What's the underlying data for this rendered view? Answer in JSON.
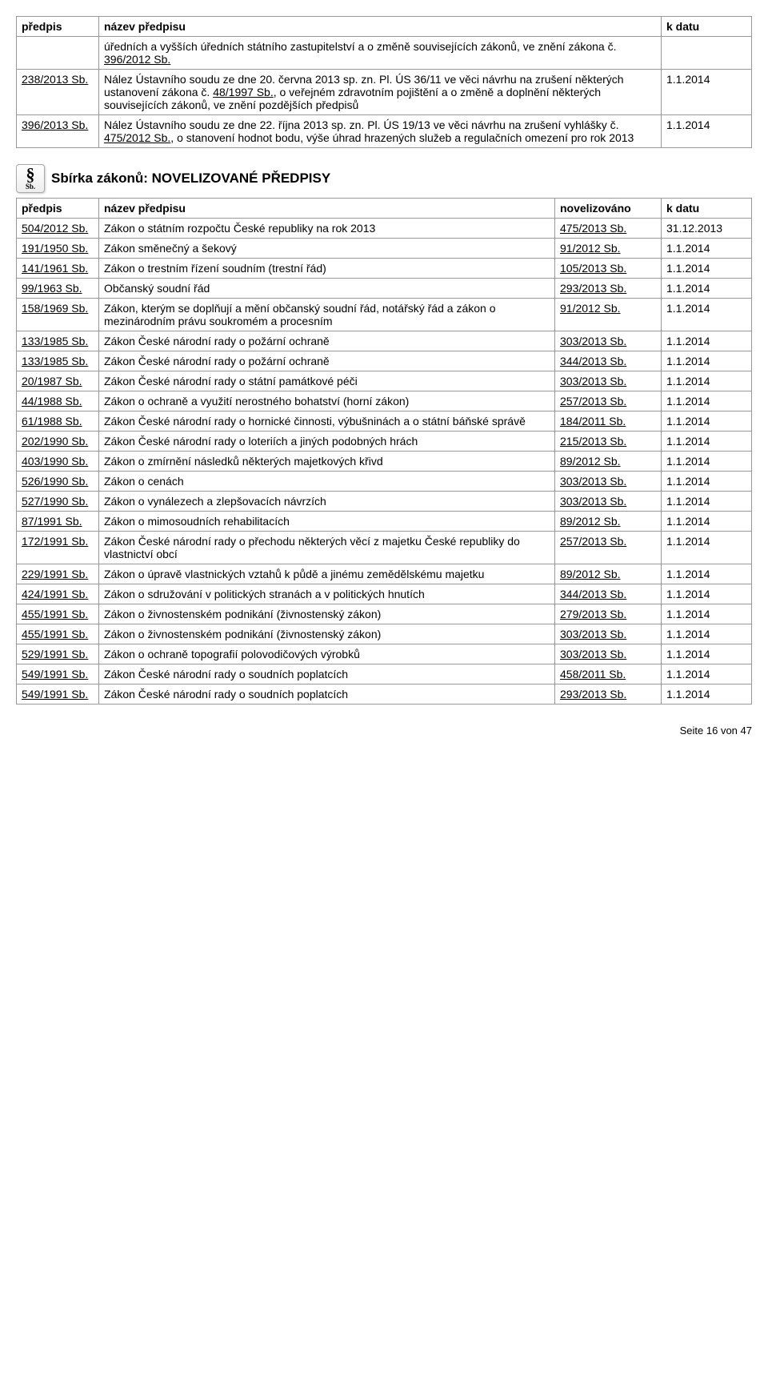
{
  "table1": {
    "headers": {
      "c1": "předpis",
      "c2": "název předpisu",
      "c3": "k datu"
    },
    "rows": [
      {
        "predpis": "",
        "nazev_pre": "úředních a vyšších úředních státního zastupitelství a o změně souvisejících zákonů, ve znění zákona č. ",
        "nazev_link": "396/2012 Sb.",
        "datum": ""
      },
      {
        "predpis": "238/2013 Sb.",
        "nazev_pre": "Nález Ústavního soudu ze dne 20. června 2013 sp. zn. Pl. ÚS 36/11 ve věci návrhu na zrušení některých ustanovení zákona č. ",
        "nazev_link": "48/1997 Sb.",
        "nazev_post": ", o veřejném zdravotním pojištění a o změně a doplnění některých souvisejících zákonů, ve znění pozdějších předpisů",
        "datum": "1.1.2014"
      },
      {
        "predpis": "396/2013 Sb.",
        "nazev_pre": "Nález Ústavního soudu ze dne 22. října 2013 sp. zn. Pl. ÚS 19/13 ve věci návrhu na zrušení vyhlášky č. ",
        "nazev_link": "475/2012 Sb.",
        "nazev_post": ", o stanovení hodnot bodu, výše úhrad hrazených služeb a regulačních omezení pro rok 2013",
        "datum": "1.1.2014"
      }
    ]
  },
  "section2_title": "Sbírka zákonů: NOVELIZOVANÉ PŘEDPISY",
  "table2": {
    "headers": {
      "c1": "předpis",
      "c2": "název předpisu",
      "c3": "novelizováno",
      "c4": "k datu"
    },
    "rows": [
      {
        "predpis": "504/2012 Sb.",
        "nazev": "Zákon o státním rozpočtu České republiky na rok 2013",
        "novel": "475/2013 Sb.",
        "datum": "31.12.2013"
      },
      {
        "predpis": "191/1950 Sb.",
        "nazev": "Zákon směnečný a šekový",
        "novel": "91/2012 Sb.",
        "datum": "1.1.2014"
      },
      {
        "predpis": "141/1961 Sb.",
        "nazev": "Zákon o trestním řízení soudním (trestní řád)",
        "novel": "105/2013 Sb.",
        "datum": "1.1.2014"
      },
      {
        "predpis": "99/1963 Sb.",
        "nazev": "Občanský soudní řád",
        "novel": "293/2013 Sb.",
        "datum": "1.1.2014"
      },
      {
        "predpis": "158/1969 Sb.",
        "nazev": "Zákon, kterým se doplňují a mění občanský soudní řád, notářský řád a zákon o mezinárodním právu soukromém a procesním",
        "novel": "91/2012 Sb.",
        "datum": "1.1.2014"
      },
      {
        "predpis": "133/1985 Sb.",
        "nazev": "Zákon České národní rady o požární ochraně",
        "novel": "303/2013 Sb.",
        "datum": "1.1.2014"
      },
      {
        "predpis": "133/1985 Sb.",
        "nazev": "Zákon České národní rady o požární ochraně",
        "novel": "344/2013 Sb.",
        "datum": "1.1.2014"
      },
      {
        "predpis": "20/1987 Sb.",
        "nazev": "Zákon České národní rady o státní památkové péči",
        "novel": "303/2013 Sb.",
        "datum": "1.1.2014"
      },
      {
        "predpis": "44/1988 Sb.",
        "nazev": "Zákon o ochraně a využití nerostného bohatství (horní zákon)",
        "novel": "257/2013 Sb.",
        "datum": "1.1.2014"
      },
      {
        "predpis": "61/1988 Sb.",
        "nazev": "Zákon České národní rady o hornické činnosti, výbušninách a o státní báňské správě",
        "novel": "184/2011 Sb.",
        "datum": "1.1.2014"
      },
      {
        "predpis": "202/1990 Sb.",
        "nazev": "Zákon České národní rady o loteriích a jiných podobných hrách",
        "novel": "215/2013 Sb.",
        "datum": "1.1.2014"
      },
      {
        "predpis": "403/1990 Sb.",
        "nazev": "Zákon o zmírnění následků některých majetkových křivd",
        "novel": "89/2012 Sb.",
        "datum": "1.1.2014"
      },
      {
        "predpis": "526/1990 Sb.",
        "nazev": "Zákon o cenách",
        "novel": "303/2013 Sb.",
        "datum": "1.1.2014"
      },
      {
        "predpis": "527/1990 Sb.",
        "nazev": "Zákon o vynálezech a zlepšovacích návrzích",
        "novel": "303/2013 Sb.",
        "datum": "1.1.2014"
      },
      {
        "predpis": "87/1991 Sb.",
        "nazev": "Zákon o mimosoudních rehabilitacích",
        "novel": "89/2012 Sb.",
        "datum": "1.1.2014"
      },
      {
        "predpis": "172/1991 Sb.",
        "nazev": "Zákon České národní rady o přechodu některých věcí z majetku České republiky do vlastnictví obcí",
        "novel": "257/2013 Sb.",
        "datum": "1.1.2014"
      },
      {
        "predpis": "229/1991 Sb.",
        "nazev": "Zákon o úpravě vlastnických vztahů k půdě a jinému zemědělskému majetku",
        "novel": "89/2012 Sb.",
        "datum": "1.1.2014"
      },
      {
        "predpis": "424/1991 Sb.",
        "nazev": "Zákon o sdružování v politických stranách a v politických hnutích",
        "novel": "344/2013 Sb.",
        "datum": "1.1.2014"
      },
      {
        "predpis": "455/1991 Sb.",
        "nazev": "Zákon o živnostenském podnikání (živnostenský zákon)",
        "novel": "279/2013 Sb.",
        "datum": "1.1.2014"
      },
      {
        "predpis": "455/1991 Sb.",
        "nazev": "Zákon o živnostenském podnikání (živnostenský zákon)",
        "novel": "303/2013 Sb.",
        "datum": "1.1.2014"
      },
      {
        "predpis": "529/1991 Sb.",
        "nazev": "Zákon o ochraně topografií polovodičových výrobků",
        "novel": "303/2013 Sb.",
        "datum": "1.1.2014"
      },
      {
        "predpis": "549/1991 Sb.",
        "nazev": "Zákon České národní rady o soudních poplatcích",
        "novel": "458/2011 Sb.",
        "datum": "1.1.2014"
      },
      {
        "predpis": "549/1991 Sb.",
        "nazev": "Zákon České národní rady o soudních poplatcích",
        "novel": "293/2013 Sb.",
        "datum": "1.1.2014"
      }
    ]
  },
  "page_label": "Seite 16 von 47"
}
